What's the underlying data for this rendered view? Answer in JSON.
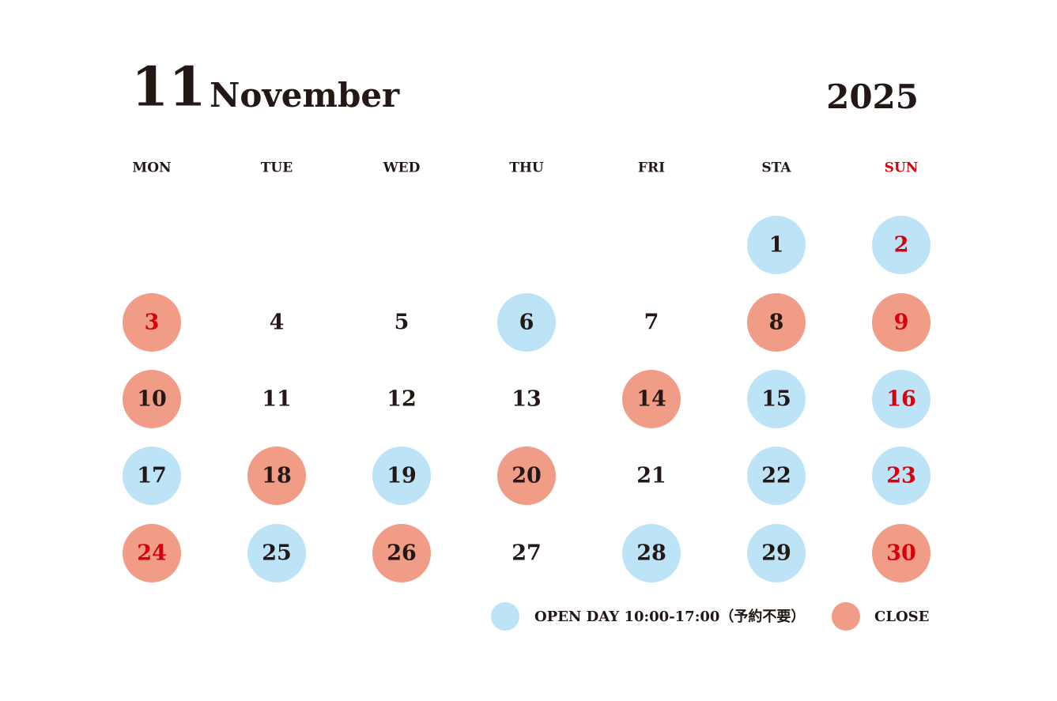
{
  "header": {
    "month_number": "11",
    "month_name": "November",
    "year": "2025"
  },
  "text_color": "#231815",
  "holiday_color": "#d7000f",
  "weekdays": [
    {
      "label": "MON"
    },
    {
      "label": "TUE"
    },
    {
      "label": "WED"
    },
    {
      "label": "THU"
    },
    {
      "label": "FRI"
    },
    {
      "label": "STA"
    },
    {
      "label": "SUN",
      "holiday": true
    }
  ],
  "legend": [
    {
      "label": "OPEN DAY 10:00-17:00（予約不要）",
      "color": "#bde3f7"
    },
    {
      "label": "CLOSE",
      "color": "#f19c86"
    }
  ],
  "weeks": [
    [
      null,
      null,
      null,
      null,
      null,
      {
        "day": 1,
        "legend": 0
      },
      {
        "day": 2,
        "legend": 0,
        "holiday": true
      }
    ],
    [
      {
        "day": 3,
        "legend": 1,
        "holiday": true
      },
      {
        "day": 4
      },
      {
        "day": 5
      },
      {
        "day": 6,
        "legend": 0
      },
      {
        "day": 7
      },
      {
        "day": 8,
        "legend": 1
      },
      {
        "day": 9,
        "legend": 1,
        "holiday": true
      }
    ],
    [
      {
        "day": 10,
        "legend": 1
      },
      {
        "day": 11
      },
      {
        "day": 12
      },
      {
        "day": 13
      },
      {
        "day": 14,
        "legend": 1
      },
      {
        "day": 15,
        "legend": 0
      },
      {
        "day": 16,
        "legend": 0,
        "holiday": true
      }
    ],
    [
      {
        "day": 17,
        "legend": 0
      },
      {
        "day": 18,
        "legend": 1
      },
      {
        "day": 19,
        "legend": 0
      },
      {
        "day": 20,
        "legend": 1
      },
      {
        "day": 21
      },
      {
        "day": 22,
        "legend": 0
      },
      {
        "day": 23,
        "legend": 0,
        "holiday": true
      }
    ],
    [
      {
        "day": 24,
        "legend": 1,
        "holiday": true
      },
      {
        "day": 25,
        "legend": 0
      },
      {
        "day": 26,
        "legend": 1
      },
      {
        "day": 27
      },
      {
        "day": 28,
        "legend": 0
      },
      {
        "day": 29,
        "legend": 0
      },
      {
        "day": 30,
        "legend": 1,
        "holiday": true
      }
    ]
  ]
}
